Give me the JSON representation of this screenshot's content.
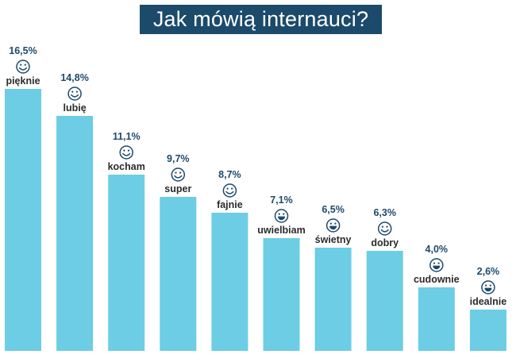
{
  "title": "Jak mówią internauci?",
  "colors": {
    "bar": "#6ccde4",
    "title_bg": "#1c4a6b",
    "title_text": "#ffffff",
    "value_text": "#1c4a6b",
    "label_text": "#2b2b2b",
    "icon": "#1c4a6b"
  },
  "chart_data": {
    "type": "bar",
    "title": "Jak mówią internauci?",
    "xlabel": "",
    "ylabel": "",
    "ylim": [
      0,
      18
    ],
    "grid": false,
    "legend": "none",
    "categories": [
      "pięknie",
      "lubię",
      "kocham",
      "super",
      "fajnie",
      "uwielbiam",
      "świetny",
      "dobry",
      "cudownie",
      "idealnie"
    ],
    "values": [
      16.5,
      14.8,
      11.1,
      9.7,
      8.7,
      7.1,
      6.5,
      6.3,
      4.0,
      2.6
    ],
    "value_labels": [
      "16,5%",
      "14,8%",
      "11,1%",
      "9,7%",
      "8,7%",
      "7,1%",
      "6,5%",
      "6,3%",
      "4,0%",
      "2,6%"
    ],
    "icons": [
      "smile-icon",
      "smile-icon",
      "smile-icon",
      "smile-icon",
      "smile-icon",
      "grin-icon",
      "grin-icon",
      "smile-icon",
      "grin-icon",
      "grin-icon"
    ]
  }
}
